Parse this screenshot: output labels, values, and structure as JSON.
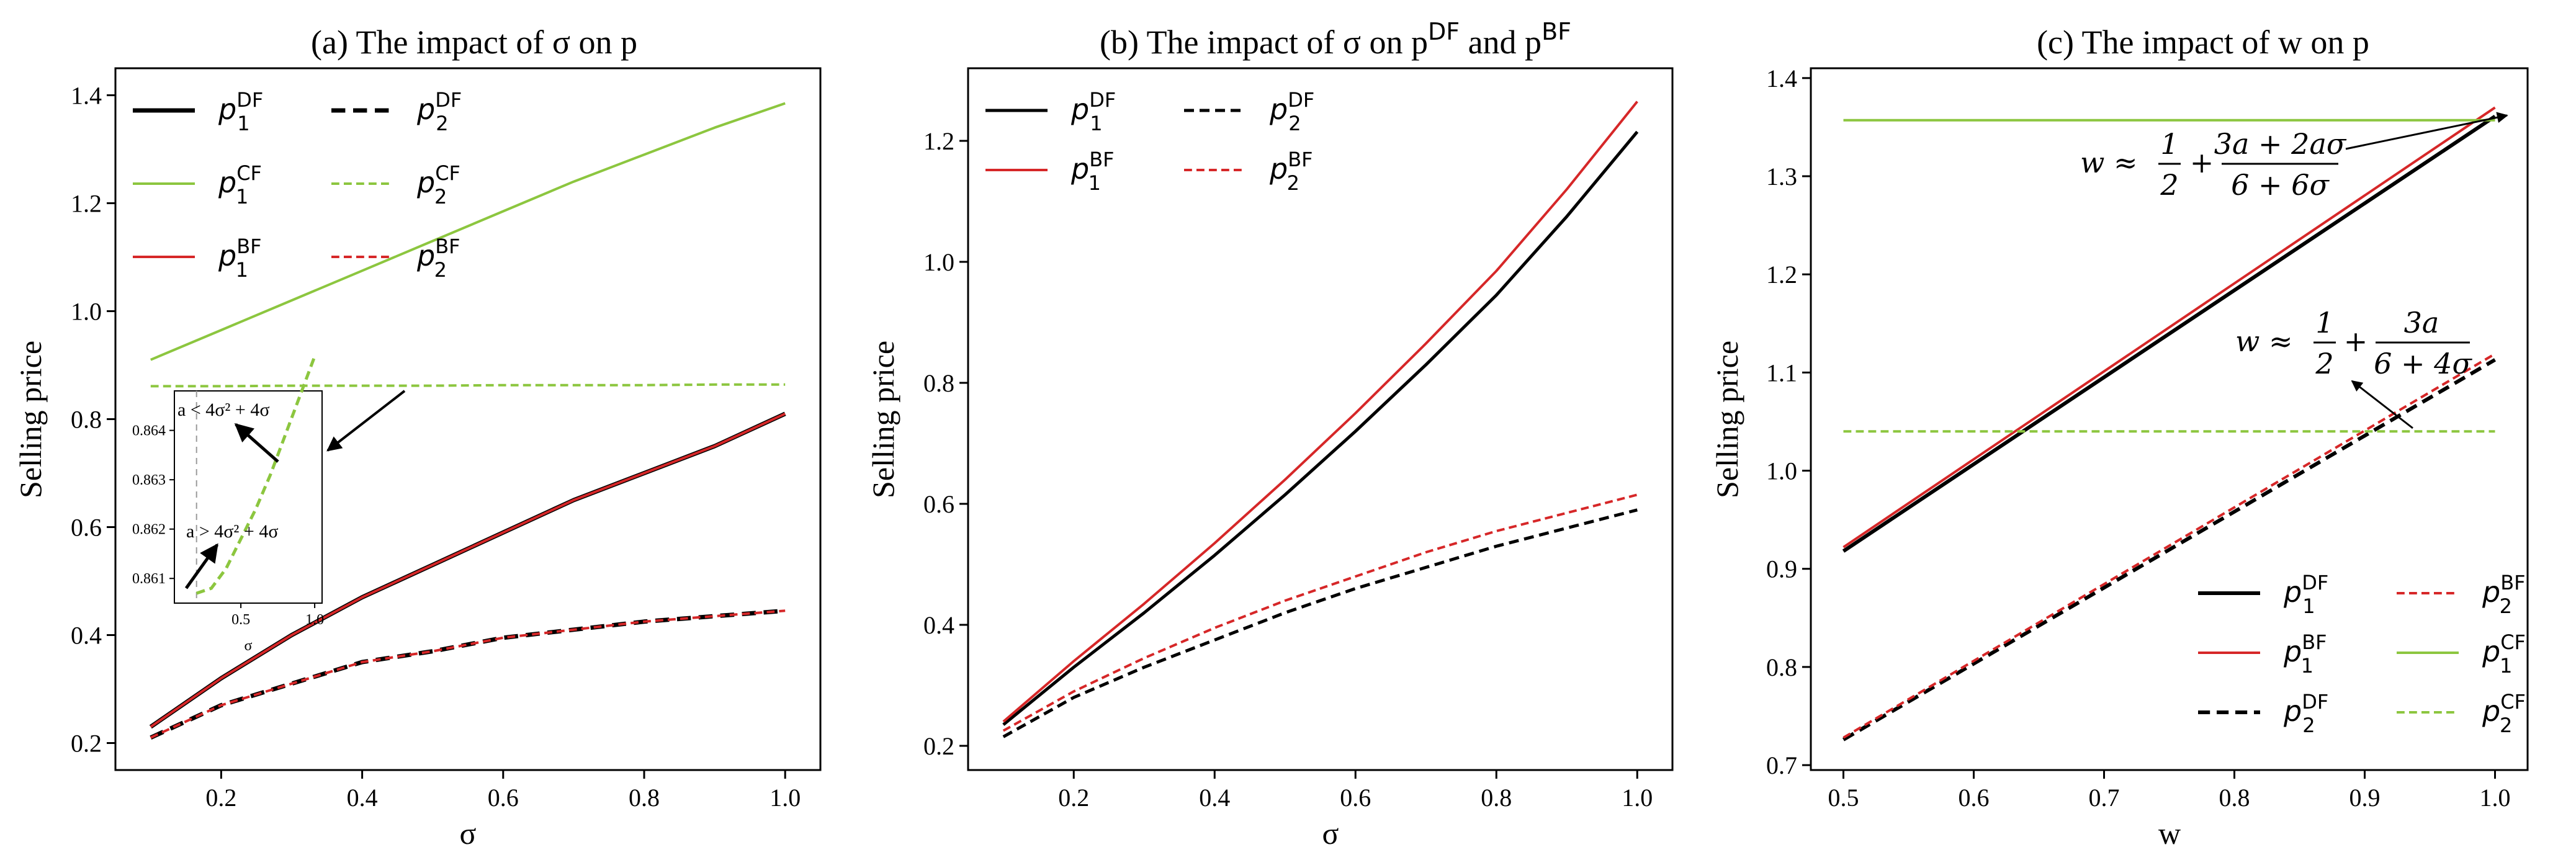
{
  "chart_data": [
    {
      "type": "line",
      "title": "(a) The impact of σ on p",
      "xlabel": "σ",
      "ylabel": "Selling price",
      "xlim": [
        0.05,
        1.05
      ],
      "ylim": [
        0.15,
        1.45
      ],
      "xticks": [
        "0.2",
        "0.4",
        "0.6",
        "0.8",
        "1.0"
      ],
      "xtick_values": [
        0.2,
        0.4,
        0.6,
        0.8,
        1.0
      ],
      "yticks": [
        "0.2",
        "0.4",
        "0.6",
        "0.8",
        "1.0",
        "1.2",
        "1.4"
      ],
      "ytick_values": [
        0.2,
        0.4,
        0.6,
        0.8,
        1.0,
        1.2,
        1.4
      ],
      "legend_position": "top-left",
      "x": [
        0.1,
        0.2,
        0.3,
        0.4,
        0.5,
        0.6,
        0.7,
        0.8,
        0.9,
        1.0
      ],
      "series": [
        {
          "name": "p1DF",
          "base": "p",
          "sub": "1",
          "sup": "DF",
          "color": "#000000",
          "dash": "solid",
          "width": 7,
          "values": [
            0.23,
            0.32,
            0.4,
            0.47,
            0.53,
            0.59,
            0.65,
            0.7,
            0.75,
            0.81
          ]
        },
        {
          "name": "p2DF",
          "base": "p",
          "sub": "2",
          "sup": "DF",
          "color": "#000000",
          "dash": "dashed",
          "width": 7,
          "values": [
            0.21,
            0.27,
            0.31,
            0.35,
            0.37,
            0.395,
            0.41,
            0.425,
            0.435,
            0.445
          ]
        },
        {
          "name": "p1CF",
          "base": "p",
          "sub": "1",
          "sup": "CF",
          "color": "#8cc63f",
          "dash": "solid",
          "width": 4,
          "values": [
            0.91,
            0.965,
            1.02,
            1.075,
            1.13,
            1.185,
            1.24,
            1.29,
            1.34,
            1.385
          ]
        },
        {
          "name": "p2CF",
          "base": "p",
          "sub": "2",
          "sup": "CF",
          "color": "#8cc63f",
          "dash": "dashed",
          "width": 4,
          "values": [
            0.861,
            0.861,
            0.862,
            0.862,
            0.862,
            0.863,
            0.863,
            0.863,
            0.864,
            0.864
          ]
        },
        {
          "name": "p1BF",
          "base": "p",
          "sub": "1",
          "sup": "BF",
          "color": "#d62728",
          "dash": "solid",
          "width": 4,
          "values": [
            0.23,
            0.32,
            0.4,
            0.47,
            0.53,
            0.59,
            0.65,
            0.7,
            0.75,
            0.81
          ]
        },
        {
          "name": "p2BF",
          "base": "p",
          "sub": "2",
          "sup": "BF",
          "color": "#d62728",
          "dash": "dashed",
          "width": 4,
          "values": [
            0.21,
            0.27,
            0.31,
            0.35,
            0.37,
            0.395,
            0.41,
            0.425,
            0.435,
            0.445
          ]
        }
      ],
      "inset": {
        "x": [
          0.2,
          0.3,
          0.4,
          0.5,
          0.6,
          0.7,
          0.8,
          0.9,
          1.0
        ],
        "values": [
          0.8607,
          0.8608,
          0.8612,
          0.8618,
          0.8624,
          0.8631,
          0.8639,
          0.8647,
          0.8655
        ],
        "xlim": [
          0.05,
          1.05
        ],
        "ylim": [
          0.8605,
          0.8648
        ],
        "xticks": [
          "0.5",
          "1.0"
        ],
        "xtick_values": [
          0.5,
          1.0
        ],
        "yticks": [
          "0.861",
          "0.862",
          "0.863",
          "0.864"
        ],
        "ytick_values": [
          0.861,
          0.862,
          0.863,
          0.864
        ],
        "xlabel": "σ",
        "vline": 0.2,
        "annotation_upper": "a < 4σ² + 4σ",
        "annotation_lower": "a > 4σ² + 4σ"
      }
    },
    {
      "type": "line",
      "title": "(b) The impact of σ on pDF and pBF",
      "title_main": "(b) The impact of σ on p",
      "title_sup1": "DF",
      "title_mid": " and p",
      "title_sup2": "BF",
      "xlabel": "σ",
      "ylabel": "Selling price",
      "xlim": [
        0.05,
        1.05
      ],
      "ylim": [
        0.16,
        1.32
      ],
      "xticks": [
        "0.2",
        "0.4",
        "0.6",
        "0.8",
        "1.0"
      ],
      "xtick_values": [
        0.2,
        0.4,
        0.6,
        0.8,
        1.0
      ],
      "yticks": [
        "0.2",
        "0.4",
        "0.6",
        "0.8",
        "1.0",
        "1.2"
      ],
      "ytick_values": [
        0.2,
        0.4,
        0.6,
        0.8,
        1.0,
        1.2
      ],
      "legend_position": "top-left",
      "x": [
        0.1,
        0.2,
        0.3,
        0.4,
        0.5,
        0.6,
        0.7,
        0.8,
        0.9,
        1.0
      ],
      "series": [
        {
          "name": "p1DF",
          "base": "p",
          "sub": "1",
          "sup": "DF",
          "color": "#000000",
          "dash": "solid",
          "width": 5,
          "values": [
            0.235,
            0.33,
            0.42,
            0.515,
            0.615,
            0.72,
            0.83,
            0.945,
            1.075,
            1.215
          ]
        },
        {
          "name": "p2DF",
          "base": "p",
          "sub": "2",
          "sup": "DF",
          "color": "#000000",
          "dash": "dashed",
          "width": 5,
          "values": [
            0.215,
            0.28,
            0.33,
            0.375,
            0.42,
            0.46,
            0.495,
            0.53,
            0.56,
            0.59
          ]
        },
        {
          "name": "p1BF",
          "base": "p",
          "sub": "1",
          "sup": "BF",
          "color": "#d62728",
          "dash": "solid",
          "width": 4,
          "values": [
            0.24,
            0.34,
            0.435,
            0.535,
            0.64,
            0.75,
            0.865,
            0.985,
            1.12,
            1.265
          ]
        },
        {
          "name": "p2BF",
          "base": "p",
          "sub": "2",
          "sup": "BF",
          "color": "#d62728",
          "dash": "dashed",
          "width": 4,
          "values": [
            0.225,
            0.29,
            0.345,
            0.395,
            0.44,
            0.48,
            0.52,
            0.555,
            0.585,
            0.615
          ]
        }
      ]
    },
    {
      "type": "line",
      "title": "(c) The impact of w on p",
      "xlabel": "w",
      "ylabel": "Selling price",
      "xlim": [
        0.475,
        1.025
      ],
      "ylim": [
        0.695,
        1.41
      ],
      "xticks": [
        "0.5",
        "0.6",
        "0.7",
        "0.8",
        "0.9",
        "1.0"
      ],
      "xtick_values": [
        0.5,
        0.6,
        0.7,
        0.8,
        0.9,
        1.0
      ],
      "yticks": [
        "0.7",
        "0.8",
        "0.9",
        "1.0",
        "1.1",
        "1.2",
        "1.3",
        "1.4"
      ],
      "ytick_values": [
        0.7,
        0.8,
        0.9,
        1.0,
        1.1,
        1.2,
        1.3,
        1.4
      ],
      "legend_position": "bottom-right",
      "x": [
        0.5,
        1.0
      ],
      "series": [
        {
          "name": "p1DF",
          "base": "p",
          "sub": "1",
          "sup": "DF",
          "color": "#000000",
          "dash": "solid",
          "width": 6,
          "values": [
            0.918,
            1.361
          ]
        },
        {
          "name": "p1BF",
          "base": "p",
          "sub": "1",
          "sup": "BF",
          "color": "#d62728",
          "dash": "solid",
          "width": 4,
          "values": [
            0.922,
            1.37
          ]
        },
        {
          "name": "p2DF",
          "base": "p",
          "sub": "2",
          "sup": "DF",
          "color": "#000000",
          "dash": "dashed",
          "width": 6,
          "values": [
            0.726,
            1.113
          ]
        },
        {
          "name": "p2BF",
          "base": "p",
          "sub": "2",
          "sup": "BF",
          "color": "#d62728",
          "dash": "dashed",
          "width": 4,
          "values": [
            0.728,
            1.119
          ]
        },
        {
          "name": "p1CF",
          "base": "p",
          "sub": "1",
          "sup": "CF",
          "color": "#8cc63f",
          "dash": "solid",
          "width": 4,
          "values": [
            1.357,
            1.357
          ]
        },
        {
          "name": "p2CF",
          "base": "p",
          "sub": "2",
          "sup": "CF",
          "color": "#8cc63f",
          "dash": "dashed",
          "width": 4,
          "values": [
            1.04,
            1.04
          ]
        }
      ],
      "annotations": [
        {
          "text": "w ≈ 1/2 + (3a + 2aσ)/(6 + 6σ)",
          "lhs": "w ≈",
          "half_num": "1",
          "half_den": "2",
          "plus": "+",
          "num": "3a + 2aσ",
          "den": "6 + 6σ",
          "target": [
            0.99,
            1.357
          ]
        },
        {
          "text": "w ≈ 1/2 + 3a/(6 + 4σ)",
          "lhs": "w ≈",
          "half_num": "1",
          "half_den": "2",
          "plus": "+",
          "num": "3a",
          "den": "6 + 4σ",
          "target": [
            0.91,
            1.04
          ]
        }
      ]
    }
  ]
}
